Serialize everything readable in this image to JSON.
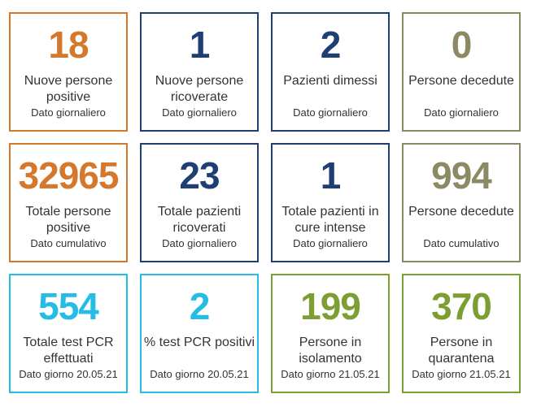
{
  "colors": {
    "orange": "#d3782c",
    "navy": "#1e3f73",
    "olive": "#8c8a65",
    "cyan": "#25bde6",
    "green": "#7d9e32"
  },
  "cards": [
    {
      "value": "18",
      "label": "Nuove persone positive",
      "sub": "Dato giornaliero"
    },
    {
      "value": "1",
      "label": "Nuove persone ricoverate",
      "sub": "Dato giornaliero"
    },
    {
      "value": "2",
      "label": "Pazienti dimessi",
      "sub": "Dato giornaliero"
    },
    {
      "value": "0",
      "label": "Persone decedute",
      "sub": "Dato giornaliero"
    },
    {
      "value": "32965",
      "label": "Totale persone positive",
      "sub": "Dato cumulativo"
    },
    {
      "value": "23",
      "label": "Totale pazienti ricoverati",
      "sub": "Dato giornaliero"
    },
    {
      "value": "1",
      "label": "Totale pazienti in cure intense",
      "sub": "Dato giornaliero"
    },
    {
      "value": "994",
      "label": "Persone decedute",
      "sub": "Dato cumulativo"
    },
    {
      "value": "554",
      "label": "Totale test PCR effettuati",
      "sub": "Dato giorno 20.05.21"
    },
    {
      "value": "2",
      "label": "% test PCR positivi",
      "sub": "Dato giorno 20.05.21"
    },
    {
      "value": "199",
      "label": "Persone in isolamento",
      "sub": "Dato giorno 21.05.21"
    },
    {
      "value": "370",
      "label": "Persone in quarantena",
      "sub": "Dato giorno 21.05.21"
    }
  ]
}
